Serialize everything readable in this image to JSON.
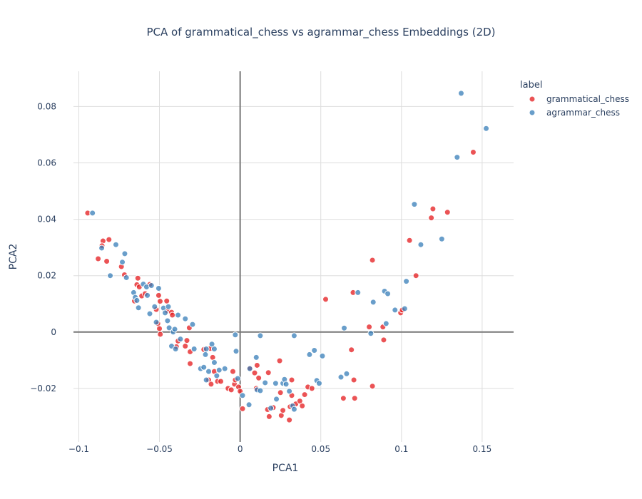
{
  "chart_data": {
    "type": "scatter",
    "title": "PCA of grammatical_chess vs agrammar_chess Embeddings (2D)",
    "xlabel": "PCA1",
    "ylabel": "PCA2",
    "xlim": [
      -0.1033,
      0.1695
    ],
    "ylim": [
      -0.039,
      0.0925
    ],
    "x_ticks": [
      -0.1,
      -0.05,
      0,
      0.05,
      0.1,
      0.15
    ],
    "x_tick_labels": [
      "−0.1",
      "−0.05",
      "0",
      "0.05",
      "0.1",
      "0.15"
    ],
    "y_ticks": [
      -0.02,
      0,
      0.02,
      0.04,
      0.06,
      0.08
    ],
    "y_tick_labels": [
      "−0.02",
      "0",
      "0.02",
      "0.04",
      "0.06",
      "0.08"
    ],
    "grid": true,
    "legend": {
      "title": "label",
      "position": "top-right"
    },
    "series": [
      {
        "name": "grammatical_chess",
        "color": "#e41a1c",
        "points": [
          [
            -0.0945,
            0.0422
          ],
          [
            -0.085,
            0.0323
          ],
          [
            -0.0813,
            0.0328
          ],
          [
            -0.0856,
            0.0306
          ],
          [
            -0.088,
            0.026
          ],
          [
            -0.0827,
            0.0251
          ],
          [
            -0.0736,
            0.0232
          ],
          [
            -0.0717,
            0.0203
          ],
          [
            -0.0655,
            0.011
          ],
          [
            -0.0634,
            0.0191
          ],
          [
            -0.064,
            0.0168
          ],
          [
            -0.0625,
            0.016
          ],
          [
            -0.061,
            0.0128
          ],
          [
            -0.0589,
            0.0136
          ],
          [
            -0.056,
            0.0169
          ],
          [
            -0.0505,
            0.013
          ],
          [
            -0.0496,
            0.0109
          ],
          [
            -0.0455,
            0.011
          ],
          [
            -0.045,
            0.0075
          ],
          [
            -0.0425,
            0.007
          ],
          [
            -0.052,
            0.008
          ],
          [
            -0.051,
            0.003
          ],
          [
            -0.05,
            0.0012
          ],
          [
            -0.0495,
            -0.0008
          ],
          [
            -0.042,
            0.006
          ],
          [
            -0.0385,
            -0.0032
          ],
          [
            -0.033,
            -0.003
          ],
          [
            -0.034,
            -0.005
          ],
          [
            -0.0395,
            -0.0052
          ],
          [
            -0.0315,
            0.0015
          ],
          [
            -0.031,
            -0.007
          ],
          [
            -0.031,
            -0.0112
          ],
          [
            -0.0225,
            -0.0062
          ],
          [
            -0.0185,
            -0.0058
          ],
          [
            -0.017,
            -0.009
          ],
          [
            -0.016,
            -0.014
          ],
          [
            -0.0195,
            -0.017
          ],
          [
            -0.018,
            -0.0185
          ],
          [
            -0.014,
            -0.0175
          ],
          [
            -0.012,
            -0.0175
          ],
          [
            -0.0075,
            -0.02
          ],
          [
            -0.0055,
            -0.0205
          ],
          [
            -0.0045,
            -0.014
          ],
          [
            -0.0035,
            -0.0185
          ],
          [
            -0.003,
            -0.017
          ],
          [
            -0.001,
            -0.0195
          ],
          [
            0.0,
            -0.021
          ],
          [
            0.0015,
            -0.0272
          ],
          [
            0.006,
            -0.0128
          ],
          [
            0.009,
            -0.0145
          ],
          [
            0.01,
            -0.02
          ],
          [
            0.0105,
            -0.0118
          ],
          [
            0.0115,
            -0.0163
          ],
          [
            0.0175,
            -0.0144
          ],
          [
            0.017,
            -0.0275
          ],
          [
            0.018,
            -0.03
          ],
          [
            0.0205,
            -0.0268
          ],
          [
            0.0245,
            -0.0102
          ],
          [
            0.025,
            -0.0215
          ],
          [
            0.0255,
            -0.0296
          ],
          [
            0.0265,
            -0.0278
          ],
          [
            0.0305,
            -0.0312
          ],
          [
            0.031,
            -0.0265
          ],
          [
            0.032,
            -0.017
          ],
          [
            0.032,
            -0.0225
          ],
          [
            0.033,
            -0.026
          ],
          [
            0.0345,
            -0.0255
          ],
          [
            0.037,
            -0.0245
          ],
          [
            0.0385,
            -0.0262
          ],
          [
            0.04,
            -0.0222
          ],
          [
            0.042,
            -0.0195
          ],
          [
            0.0445,
            -0.02
          ],
          [
            0.053,
            0.0116
          ],
          [
            0.064,
            -0.0235
          ],
          [
            0.069,
            -0.0063
          ],
          [
            0.07,
            0.014
          ],
          [
            0.0705,
            -0.017
          ],
          [
            0.071,
            -0.0235
          ],
          [
            0.08,
            0.0018
          ],
          [
            0.082,
            0.0255
          ],
          [
            0.082,
            -0.0192
          ],
          [
            0.0885,
            0.0018
          ],
          [
            0.089,
            -0.0028
          ],
          [
            0.0995,
            0.0068
          ],
          [
            0.1005,
            0.0078
          ],
          [
            0.105,
            0.0325
          ],
          [
            0.109,
            0.02
          ],
          [
            0.1185,
            0.0405
          ],
          [
            0.1195,
            0.0437
          ],
          [
            0.1285,
            0.0425
          ],
          [
            0.1445,
            0.0638
          ]
        ]
      },
      {
        "name": "agrammar_chess",
        "color": "#377eb8",
        "points": [
          [
            -0.0915,
            0.0422
          ],
          [
            -0.0858,
            0.0298
          ],
          [
            -0.0805,
            0.02
          ],
          [
            -0.077,
            0.031
          ],
          [
            -0.073,
            0.0248
          ],
          [
            -0.0715,
            0.0278
          ],
          [
            -0.0705,
            0.0193
          ],
          [
            -0.066,
            0.014
          ],
          [
            -0.065,
            0.0123
          ],
          [
            -0.064,
            0.0112
          ],
          [
            -0.063,
            0.0086
          ],
          [
            -0.06,
            0.017
          ],
          [
            -0.058,
            0.016
          ],
          [
            -0.0575,
            0.013
          ],
          [
            -0.055,
            0.0165
          ],
          [
            -0.056,
            0.0065
          ],
          [
            -0.053,
            0.009
          ],
          [
            -0.052,
            0.0035
          ],
          [
            -0.0505,
            0.0155
          ],
          [
            -0.0475,
            0.0085
          ],
          [
            -0.0465,
            0.0068
          ],
          [
            -0.045,
            0.004
          ],
          [
            -0.0445,
            0.009
          ],
          [
            -0.044,
            0.0015
          ],
          [
            -0.0425,
            -0.005
          ],
          [
            -0.0415,
            0.0
          ],
          [
            -0.0405,
            0.001
          ],
          [
            -0.04,
            -0.006
          ],
          [
            -0.0385,
            0.006
          ],
          [
            -0.037,
            -0.0025
          ],
          [
            -0.034,
            0.0047
          ],
          [
            -0.0295,
            0.0027
          ],
          [
            -0.0285,
            -0.006
          ],
          [
            -0.0245,
            -0.013
          ],
          [
            -0.0225,
            -0.0125
          ],
          [
            -0.0215,
            -0.008
          ],
          [
            -0.021,
            -0.006
          ],
          [
            -0.0195,
            -0.014
          ],
          [
            -0.021,
            -0.017
          ],
          [
            -0.0175,
            -0.0043
          ],
          [
            -0.016,
            -0.006
          ],
          [
            -0.016,
            -0.0108
          ],
          [
            -0.0145,
            -0.0155
          ],
          [
            -0.013,
            -0.0135
          ],
          [
            -0.0095,
            -0.013
          ],
          [
            -0.003,
            -0.001
          ],
          [
            -0.0025,
            -0.0068
          ],
          [
            -0.0015,
            -0.0165
          ],
          [
            0.0015,
            -0.0225
          ],
          [
            0.0055,
            -0.0258
          ],
          [
            0.006,
            -0.013
          ],
          [
            0.01,
            -0.009
          ],
          [
            0.0105,
            -0.0205
          ],
          [
            0.0125,
            -0.0208
          ],
          [
            0.0125,
            -0.0013
          ],
          [
            0.0155,
            -0.018
          ],
          [
            0.019,
            -0.027
          ],
          [
            0.022,
            -0.0182
          ],
          [
            0.0225,
            -0.0238
          ],
          [
            0.0265,
            -0.0182
          ],
          [
            0.0275,
            -0.0168
          ],
          [
            0.0285,
            -0.0185
          ],
          [
            0.0305,
            -0.021
          ],
          [
            0.0325,
            -0.0262
          ],
          [
            0.0335,
            -0.0274
          ],
          [
            0.0335,
            -0.0013
          ],
          [
            0.043,
            -0.008
          ],
          [
            0.046,
            -0.0065
          ],
          [
            0.0475,
            -0.0172
          ],
          [
            0.049,
            -0.0182
          ],
          [
            0.051,
            -0.0085
          ],
          [
            0.0625,
            -0.016
          ],
          [
            0.0645,
            0.0014
          ],
          [
            0.066,
            -0.0148
          ],
          [
            0.073,
            0.014
          ],
          [
            0.081,
            -0.0005
          ],
          [
            0.0825,
            0.0106
          ],
          [
            0.0895,
            0.0145
          ],
          [
            0.0905,
            0.003
          ],
          [
            0.0915,
            0.0136
          ],
          [
            0.096,
            0.0078
          ],
          [
            0.102,
            0.0083
          ],
          [
            0.103,
            0.018
          ],
          [
            0.108,
            0.0453
          ],
          [
            0.112,
            0.031
          ],
          [
            0.125,
            0.033
          ],
          [
            0.1345,
            0.062
          ],
          [
            0.137,
            0.0847
          ],
          [
            0.1525,
            0.0722
          ]
        ]
      }
    ]
  }
}
